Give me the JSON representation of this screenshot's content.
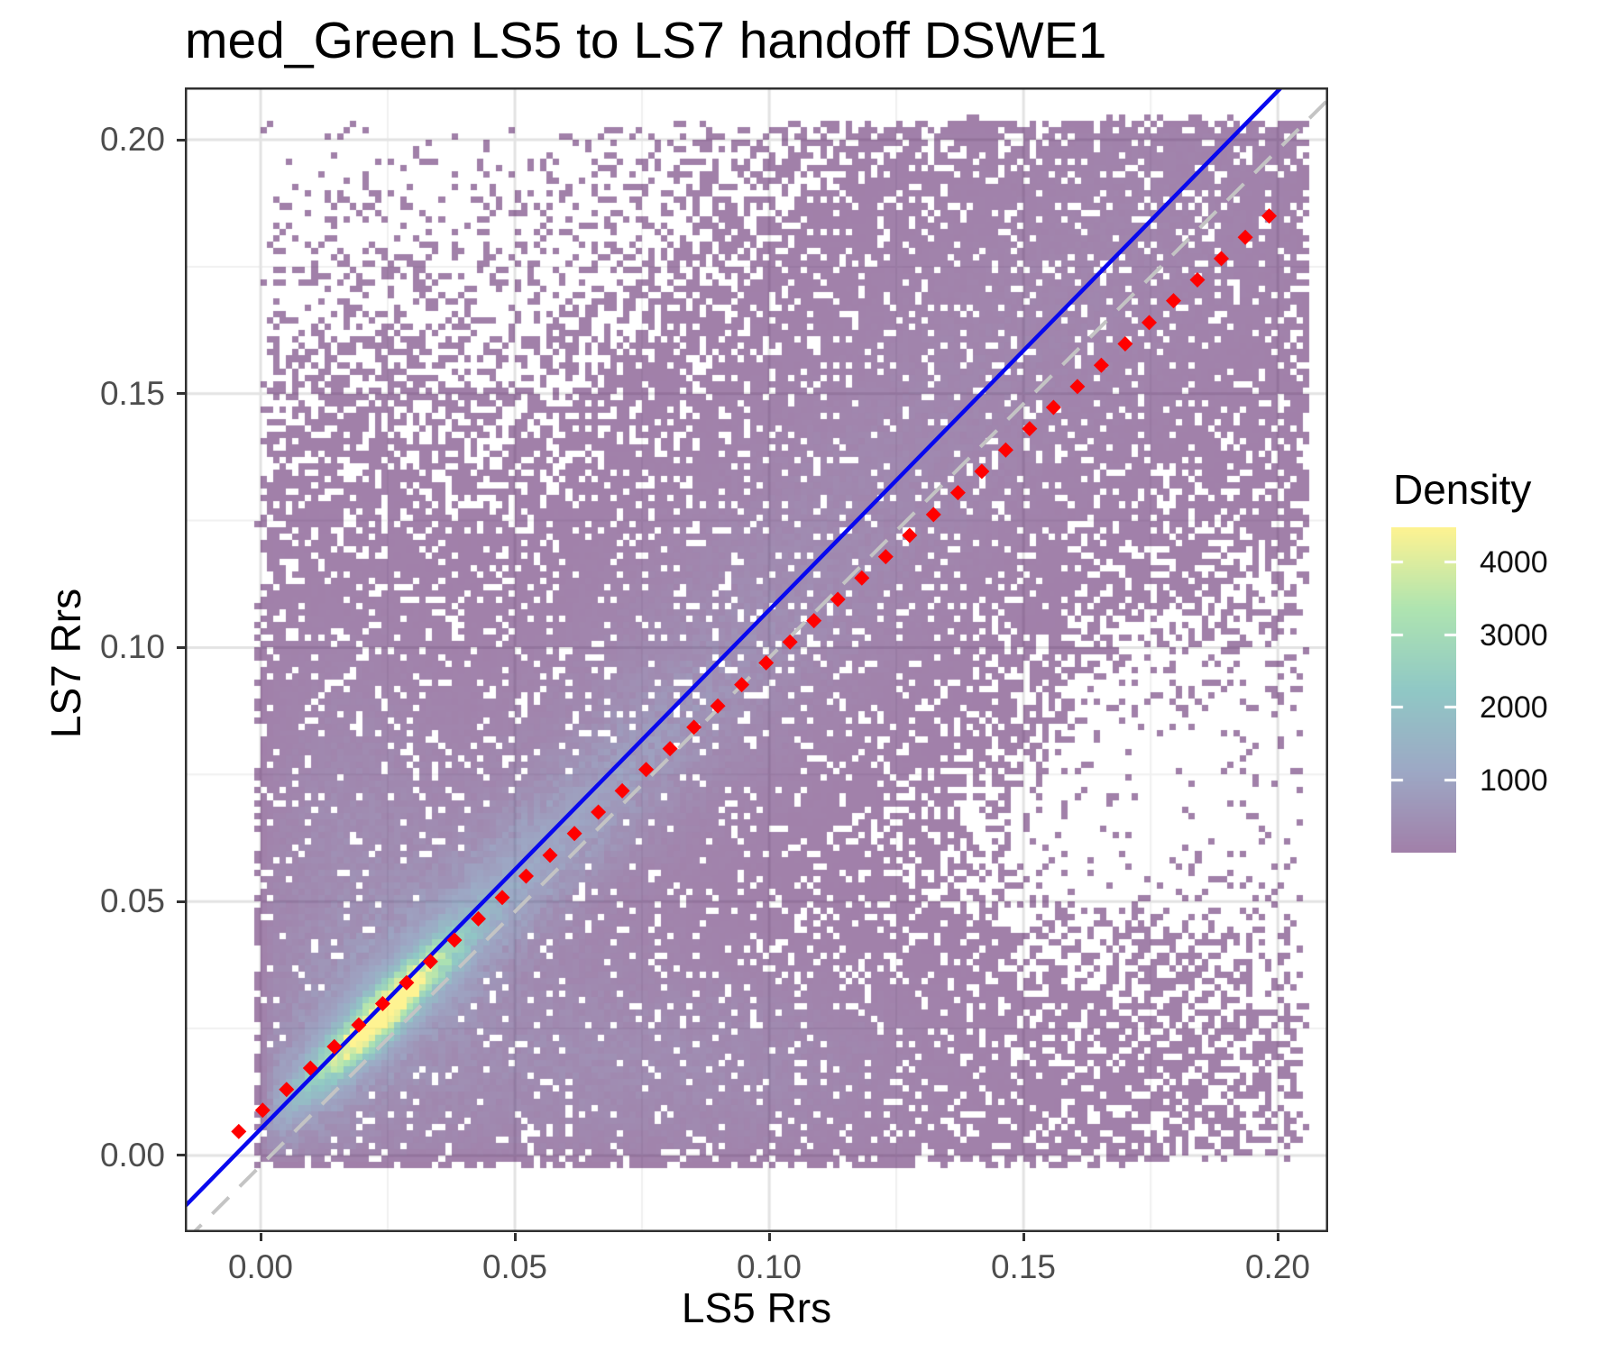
{
  "chart_data": {
    "type": "heatmap",
    "subtype": "bin2d-density-scatter",
    "title": "med_Green LS5 to LS7 handoff DSWE1",
    "xlabel": "LS5 Rrs",
    "ylabel": "LS7 Rrs",
    "xlim": [
      -0.0149,
      0.2099
    ],
    "ylim": [
      -0.0151,
      0.2103
    ],
    "x_ticks": {
      "values": [
        0.0,
        0.05,
        0.1,
        0.15,
        0.2
      ],
      "labels": [
        "0.00",
        "0.05",
        "0.10",
        "0.15",
        "0.20"
      ]
    },
    "y_ticks": {
      "values": [
        0.0,
        0.05,
        0.1,
        0.15,
        0.2
      ],
      "labels": [
        "0.00",
        "0.05",
        "0.10",
        "0.15",
        "0.20"
      ]
    },
    "grid": {
      "major": true,
      "minor": true,
      "major_color": "#E3E3E3",
      "minor_color": "#F0F0F0"
    },
    "panel": {
      "background": "#ffffff",
      "border_color": "#303030"
    },
    "legend": {
      "title": "Density",
      "position": "right",
      "ticks": [
        4000,
        3000,
        2000,
        1000
      ],
      "vmin": 0,
      "vmax": 4470
    },
    "color_scale": {
      "name": "viridis",
      "alpha": 0.5,
      "stops": [
        [
          68,
          1,
          84
        ],
        [
          59,
          82,
          139
        ],
        [
          33,
          145,
          140
        ],
        [
          94,
          201,
          98
        ],
        [
          253,
          231,
          37
        ]
      ]
    },
    "lines": [
      {
        "name": "identity-line",
        "slope": 1.0,
        "intercept": -0.002,
        "color": "#C4C4C4",
        "dash": [
          26,
          17
        ],
        "width": 4
      },
      {
        "name": "fit-line",
        "slope": 1.022,
        "intercept": 0.0052,
        "color": "#0808EE",
        "dash": null,
        "width": 4.5
      }
    ],
    "median_points": {
      "name": "quantile-median-points",
      "color": "#FF0000",
      "shape": "diamond",
      "size": 8.5,
      "x": [
        -0.0043,
        0.0004,
        0.0051,
        0.0098,
        0.0145,
        0.0193,
        0.024,
        0.0287,
        0.0334,
        0.0381,
        0.0428,
        0.0475,
        0.0522,
        0.0569,
        0.0617,
        0.0664,
        0.0711,
        0.0758,
        0.0805,
        0.0852,
        0.0899,
        0.0946,
        0.0994,
        0.1041,
        0.1088,
        0.1135,
        0.1182,
        0.1229,
        0.1276,
        0.1323,
        0.1371,
        0.1418,
        0.1465,
        0.1512,
        0.1559,
        0.1606,
        0.1653,
        0.17,
        0.1747,
        0.1795,
        0.1842,
        0.1889,
        0.1936,
        0.1983
      ],
      "y": [
        0.0047,
        0.0089,
        0.013,
        0.0172,
        0.0214,
        0.0257,
        0.0299,
        0.034,
        0.0382,
        0.0424,
        0.0466,
        0.0508,
        0.055,
        0.0591,
        0.0634,
        0.0676,
        0.0718,
        0.076,
        0.0801,
        0.0843,
        0.0885,
        0.0927,
        0.097,
        0.1011,
        0.1053,
        0.1095,
        0.1137,
        0.1179,
        0.1221,
        0.1262,
        0.1305,
        0.1347,
        0.1389,
        0.1431,
        0.1473,
        0.1514,
        0.1556,
        0.1598,
        0.164,
        0.1683,
        0.1724,
        0.1766,
        0.1808,
        0.185
      ]
    },
    "density_model": {
      "comment": "generative approximation of the binned 2d density; counts per 0.00125-unit bin",
      "bin_size": 0.00125,
      "x0": -0.015,
      "y0": -0.015,
      "n": 180,
      "seed": 20,
      "components": [
        {
          "frame": "diag",
          "A": 4350,
          "c1": 0.0368,
          "c2": 0.0028,
          "s1": 0.0135,
          "s2": 0.0026
        },
        {
          "frame": "diag",
          "A": 950,
          "c1": 0.058,
          "c2": 0.0032,
          "s1": 0.042,
          "s2": 0.0068
        },
        {
          "frame": "diag",
          "A": 270,
          "c1": 0.128,
          "c2": 0.005,
          "s1": 0.082,
          "s2": 0.019
        },
        {
          "frame": "diag",
          "A": 0.9,
          "c1": 0.13,
          "c2": 0.01,
          "s1": 0.105,
          "s2": 0.048
        },
        {
          "frame": "xy",
          "A": 330,
          "c1": 0.072,
          "c2": 0.018,
          "s1": 0.04,
          "s2": 0.0135
        },
        {
          "frame": "xy",
          "A": 0.9,
          "c1": 0.1,
          "c2": 0.03,
          "s1": 0.055,
          "s2": 0.022
        },
        {
          "frame": "xy",
          "A": 300,
          "c1": 0.017,
          "c2": 0.052,
          "s1": 0.012,
          "s2": 0.032
        },
        {
          "frame": "xy",
          "A": 0.7,
          "c1": 0.028,
          "c2": 0.1,
          "s1": 0.022,
          "s2": 0.05
        },
        {
          "frame": "xy",
          "A": 40,
          "c1": 0.178,
          "c2": 0.178,
          "s1": 0.03,
          "s2": 0.03
        },
        {
          "frame": "diag",
          "A": 0.15,
          "c1": 0.135,
          "c2": 0.012,
          "s1": 0.16,
          "s2": 0.085
        }
      ],
      "voids": [
        {
          "c1": 0.17,
          "c2": 0.08,
          "s1": 0.022,
          "s2": 0.03,
          "k": 0.92
        },
        {
          "c1": 0.155,
          "c2": 0.045,
          "s1": 0.015,
          "s2": 0.018,
          "k": 0.8
        }
      ],
      "edges": {
        "x0": -0.001,
        "x1": 0.2065,
        "y0": -0.0025,
        "y1": 0.2045,
        "w": 0.0045
      }
    }
  },
  "layout_text": {
    "note": "all visible strings bound below come from chart_data"
  }
}
